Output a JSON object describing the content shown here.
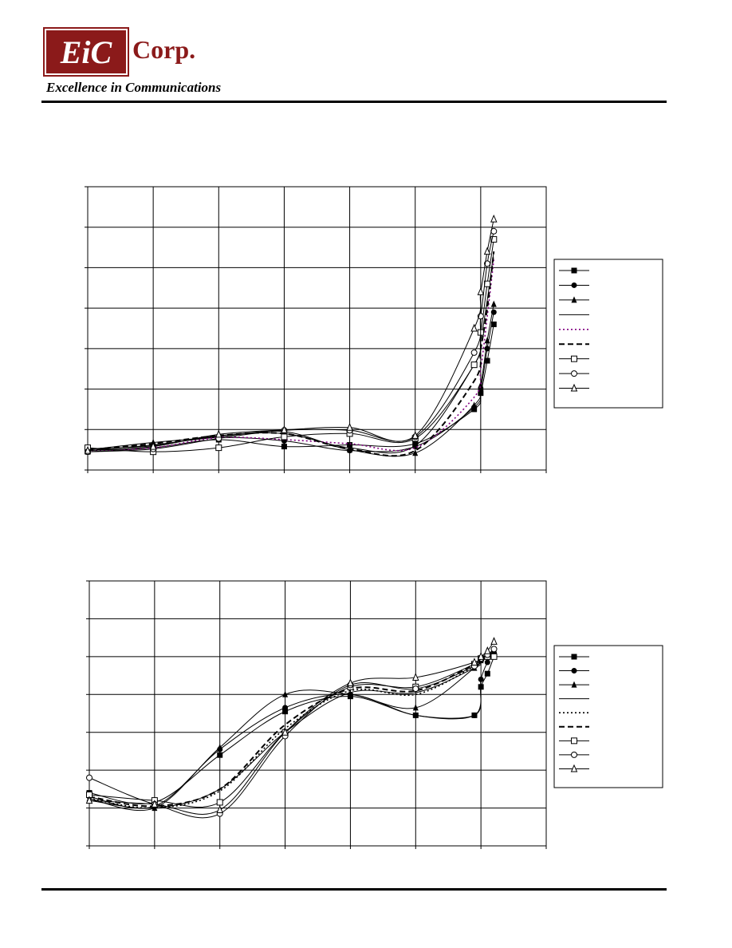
{
  "header": {
    "logo_text": "EiC",
    "company_suffix": "Corp.",
    "tagline": "Excellence in Communications",
    "brand_color": "#8b1a1a"
  },
  "chart_data": [
    {
      "type": "line",
      "grid": true,
      "legend_placement": "right",
      "y_range": [
        0,
        7
      ],
      "x_range": [
        0,
        7
      ],
      "series": [
        {
          "marker": "filled-square",
          "line": "solid",
          "color": "#000000",
          "x": [
            0,
            1,
            2,
            3,
            4,
            5,
            5.9,
            6.0,
            6.1,
            6.2
          ],
          "y": [
            0.45,
            0.55,
            0.75,
            0.58,
            0.62,
            0.65,
            1.5,
            1.9,
            2.7,
            3.6
          ]
        },
        {
          "marker": "filled-circle",
          "line": "solid",
          "color": "#000000",
          "x": [
            0,
            1,
            2,
            3,
            4,
            5,
            5.9,
            6.0,
            6.1,
            6.2
          ],
          "y": [
            0.48,
            0.62,
            0.8,
            0.72,
            0.48,
            0.58,
            1.55,
            2.0,
            3.0,
            3.9
          ]
        },
        {
          "marker": "filled-triangle",
          "line": "solid",
          "color": "#000000",
          "x": [
            0,
            1,
            2,
            3,
            4,
            5,
            5.9,
            6.0,
            6.1,
            6.2
          ],
          "y": [
            0.5,
            0.68,
            0.82,
            0.95,
            0.5,
            0.42,
            1.6,
            2.1,
            3.2,
            4.1
          ]
        },
        {
          "marker": "none",
          "line": "solid",
          "color": "#000000",
          "x": [
            0,
            1,
            2,
            3,
            4,
            5,
            5.9,
            6.0,
            6.1,
            6.2
          ],
          "y": [
            0.52,
            0.6,
            0.85,
            0.9,
            0.55,
            0.6,
            2.6,
            3.2,
            4.2,
            5.4
          ]
        },
        {
          "marker": "none",
          "line": "dotted",
          "color": "#800080",
          "x": [
            0,
            1,
            2,
            3,
            4,
            5,
            5.9,
            6.0,
            6.1,
            6.2
          ],
          "y": [
            0.48,
            0.55,
            0.8,
            0.75,
            0.65,
            0.55,
            1.8,
            2.5,
            3.8,
            5.2
          ]
        },
        {
          "marker": "none",
          "line": "dashed",
          "color": "#000000",
          "x": [
            0,
            1,
            2,
            3,
            4,
            5,
            5.9,
            6.0,
            6.1,
            6.2
          ],
          "y": [
            0.5,
            0.65,
            0.85,
            0.9,
            0.52,
            0.48,
            2.2,
            3.0,
            4.0,
            5.4
          ]
        },
        {
          "marker": "open-square",
          "line": "solid",
          "color": "#000000",
          "x": [
            0,
            1,
            2,
            3,
            4,
            5,
            5.9,
            6.0,
            6.1,
            6.2
          ],
          "y": [
            0.55,
            0.45,
            0.55,
            0.82,
            0.9,
            0.78,
            2.6,
            3.4,
            4.6,
            5.7
          ]
        },
        {
          "marker": "open-circle",
          "line": "solid",
          "color": "#000000",
          "x": [
            0,
            1,
            2,
            3,
            4,
            5,
            5.9,
            6.0,
            6.1,
            6.2
          ],
          "y": [
            0.45,
            0.52,
            0.78,
            0.98,
            0.98,
            0.82,
            2.9,
            3.8,
            5.1,
            5.9
          ]
        },
        {
          "marker": "open-triangle",
          "line": "solid",
          "color": "#000000",
          "x": [
            0,
            1,
            2,
            3,
            4,
            5,
            5.9,
            6.0,
            6.1,
            6.2
          ],
          "y": [
            0.48,
            0.58,
            0.88,
            0.99,
            1.05,
            0.85,
            3.5,
            4.4,
            5.4,
            6.2
          ]
        }
      ]
    },
    {
      "type": "line",
      "grid": true,
      "legend_placement": "right",
      "y_range": [
        0,
        7
      ],
      "x_range": [
        0,
        7
      ],
      "series": [
        {
          "marker": "filled-square",
          "line": "solid",
          "color": "#000000",
          "x": [
            0,
            1,
            2,
            3,
            4,
            5,
            5.9,
            6.0,
            6.1,
            6.2
          ],
          "y": [
            1.4,
            1.15,
            2.4,
            3.55,
            3.95,
            3.45,
            3.45,
            4.2,
            4.55,
            5.0
          ]
        },
        {
          "marker": "filled-circle",
          "line": "solid",
          "color": "#000000",
          "x": [
            0,
            1,
            2,
            3,
            4,
            5,
            5.9,
            6.0,
            6.1,
            6.2
          ],
          "y": [
            1.3,
            1.05,
            2.55,
            3.65,
            4.0,
            3.45,
            3.45,
            4.4,
            4.85,
            5.1
          ]
        },
        {
          "marker": "filled-triangle",
          "line": "solid",
          "color": "#000000",
          "x": [
            0,
            1,
            2,
            3,
            4,
            5,
            5.9,
            6.0,
            6.1,
            6.2
          ],
          "y": [
            1.25,
            1.0,
            2.6,
            4.0,
            4.0,
            3.65,
            4.7,
            4.9,
            5.0,
            5.15
          ]
        },
        {
          "marker": "none",
          "line": "solid",
          "color": "#000000",
          "x": [
            0,
            1,
            2,
            3,
            4,
            5,
            5.9,
            6.0,
            6.1,
            6.2
          ],
          "y": [
            1.2,
            1.0,
            1.5,
            3.0,
            4.05,
            4.05,
            4.7,
            4.85,
            5.0,
            5.1
          ]
        },
        {
          "marker": "none",
          "line": "dotted",
          "color": "#000000",
          "x": [
            0,
            1,
            2,
            3,
            4,
            5,
            5.9,
            6.0,
            6.1,
            6.2
          ],
          "y": [
            1.25,
            1.0,
            1.45,
            3.1,
            4.1,
            4.0,
            4.75,
            4.9,
            5.0,
            5.15
          ]
        },
        {
          "marker": "none",
          "line": "dashed",
          "color": "#000000",
          "x": [
            0,
            1,
            2,
            3,
            4,
            5,
            5.9,
            6.0,
            6.1,
            6.2
          ],
          "y": [
            1.3,
            1.05,
            1.5,
            3.2,
            4.15,
            4.1,
            4.8,
            4.95,
            5.05,
            5.15
          ]
        },
        {
          "marker": "open-square",
          "line": "solid",
          "color": "#000000",
          "x": [
            0,
            1,
            2,
            3,
            4,
            5,
            5.9,
            6.0,
            6.1,
            6.2
          ],
          "y": [
            1.35,
            1.2,
            1.15,
            3.0,
            4.2,
            4.2,
            4.8,
            4.95,
            5.0,
            5.0
          ]
        },
        {
          "marker": "open-circle",
          "line": "solid",
          "color": "#000000",
          "x": [
            0,
            1,
            2,
            3,
            4,
            5,
            5.9,
            6.0,
            6.1,
            6.2
          ],
          "y": [
            1.8,
            1.1,
            0.85,
            2.9,
            4.25,
            4.15,
            4.75,
            4.95,
            5.05,
            5.2
          ]
        },
        {
          "marker": "open-triangle",
          "line": "solid",
          "color": "#000000",
          "x": [
            0,
            1,
            2,
            3,
            4,
            5,
            5.9,
            6.0,
            6.1,
            6.2
          ],
          "y": [
            1.2,
            1.1,
            0.95,
            3.0,
            4.3,
            4.45,
            4.85,
            5.0,
            5.15,
            5.4
          ]
        }
      ]
    }
  ]
}
